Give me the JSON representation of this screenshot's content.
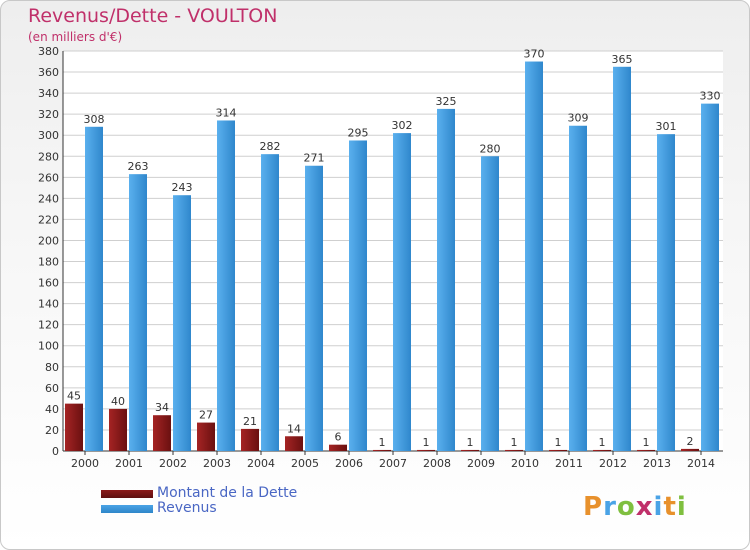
{
  "header": {
    "title": "Revenus/Dette - VOULTON",
    "subtitle": "(en milliers d'€)"
  },
  "brand": {
    "name": "Proxiti"
  },
  "colors": {
    "dette": "#8b1a1a",
    "revenus": "#4aa3e6",
    "grid": "#cfcfcf",
    "title": "#c0306a",
    "legend_text": "#4a67c4"
  },
  "chart_data": {
    "type": "bar",
    "title": "Revenus/Dette - VOULTON",
    "subtitle": "(en milliers d'€)",
    "categories": [
      "2000",
      "2001",
      "2002",
      "2003",
      "2004",
      "2005",
      "2006",
      "2007",
      "2008",
      "2009",
      "2010",
      "2011",
      "2012",
      "2013",
      "2014"
    ],
    "series": [
      {
        "name": "Montant de la Dette",
        "values": [
          45,
          40,
          34,
          27,
          21,
          14,
          6,
          1,
          1,
          1,
          1,
          1,
          1,
          1,
          2
        ]
      },
      {
        "name": "Revenus",
        "values": [
          308,
          263,
          243,
          314,
          282,
          271,
          295,
          302,
          325,
          280,
          370,
          309,
          365,
          301,
          330
        ]
      }
    ],
    "ylim": [
      0,
      380
    ],
    "yticks": [
      0,
      20,
      40,
      60,
      80,
      100,
      120,
      140,
      160,
      180,
      200,
      220,
      240,
      260,
      280,
      300,
      320,
      340,
      360,
      380
    ],
    "grid": true,
    "legend": "bottom-left"
  }
}
